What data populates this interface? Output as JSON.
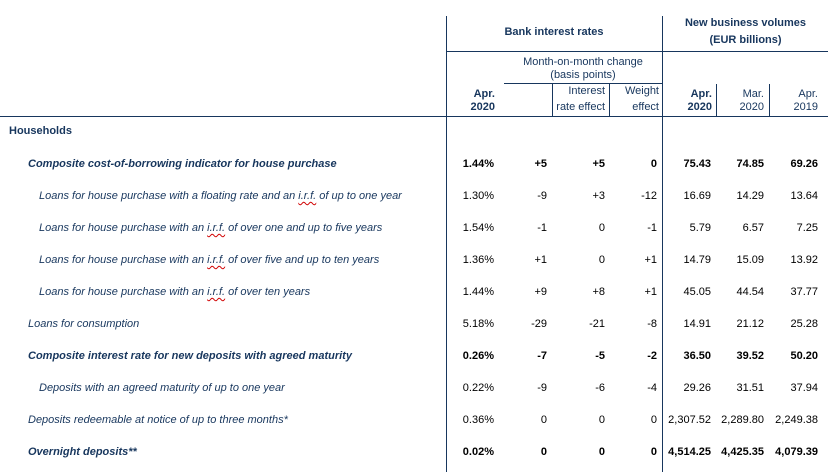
{
  "header": {
    "bank_rates": "Bank interest rates",
    "volumes_line1": "New business volumes",
    "volumes_line2": "(EUR billions)",
    "mom_line1": "Month-on-month change",
    "mom_line2": "(basis points)",
    "interest_line1": "Interest",
    "interest_line2": "rate effect",
    "weight_line1": "Weight",
    "weight_line2": "effect",
    "col_rate": [
      "Apr.",
      "2020"
    ],
    "col_vol_apr20": [
      "Apr.",
      "2020"
    ],
    "col_vol_mar20": [
      "Mar.",
      "2020"
    ],
    "col_vol_apr19": [
      "Apr.",
      "2019"
    ]
  },
  "section": "Households",
  "rows": [
    {
      "pre": "Composite cost-of-borrowing indicator for house purchase",
      "irf": "",
      "post": "",
      "bold": true,
      "indent": 1,
      "rate": "1.44%",
      "mom": "+5",
      "ir": "+5",
      "w": "0",
      "v1": "75.43",
      "v2": "74.85",
      "v3": "69.26"
    },
    {
      "pre": "Loans for house purchase with a floating rate and an ",
      "irf": "i.r.f.",
      "post": " of up to one year",
      "bold": false,
      "indent": 2,
      "rate": "1.30%",
      "mom": "-9",
      "ir": "+3",
      "w": "-12",
      "v1": "16.69",
      "v2": "14.29",
      "v3": "13.64"
    },
    {
      "pre": "Loans for house purchase with an ",
      "irf": "i.r.f.",
      "post": " of over one and up to five years",
      "bold": false,
      "indent": 2,
      "rate": "1.54%",
      "mom": "-1",
      "ir": "0",
      "w": "-1",
      "v1": "5.79",
      "v2": "6.57",
      "v3": "7.25"
    },
    {
      "pre": "Loans for house purchase with an ",
      "irf": "i.r.f.",
      "post": " of over five and up to ten years",
      "bold": false,
      "indent": 2,
      "rate": "1.36%",
      "mom": "+1",
      "ir": "0",
      "w": "+1",
      "v1": "14.79",
      "v2": "15.09",
      "v3": "13.92"
    },
    {
      "pre": "Loans for house purchase with an ",
      "irf": "i.r.f.",
      "post": " of over ten years",
      "bold": false,
      "indent": 2,
      "rate": "1.44%",
      "mom": "+9",
      "ir": "+8",
      "w": "+1",
      "v1": "45.05",
      "v2": "44.54",
      "v3": "37.77"
    },
    {
      "pre": "Loans for consumption",
      "irf": "",
      "post": "",
      "bold": false,
      "indent": 1,
      "rate": "5.18%",
      "mom": "-29",
      "ir": "-21",
      "w": "-8",
      "v1": "14.91",
      "v2": "21.12",
      "v3": "25.28"
    },
    {
      "pre": "Composite interest rate for new deposits with agreed maturity",
      "irf": "",
      "post": "",
      "bold": true,
      "indent": 1,
      "rate": "0.26%",
      "mom": "-7",
      "ir": "-5",
      "w": "-2",
      "v1": "36.50",
      "v2": "39.52",
      "v3": "50.20"
    },
    {
      "pre": "Deposits with an agreed maturity of up to one year",
      "irf": "",
      "post": "",
      "bold": false,
      "indent": 2,
      "rate": "0.22%",
      "mom": "-9",
      "ir": "-6",
      "w": "-4",
      "v1": "29.26",
      "v2": "31.51",
      "v3": "37.94"
    },
    {
      "pre": "Deposits redeemable at notice of up to three months*",
      "irf": "",
      "post": "",
      "bold": false,
      "indent": 1,
      "rate": "0.36%",
      "mom": "0",
      "ir": "0",
      "w": "0",
      "v1": "2,307.52",
      "v2": "2,289.80",
      "v3": "2,249.38"
    },
    {
      "pre": "Overnight deposits**",
      "irf": "",
      "post": "",
      "bold": true,
      "indent": 1,
      "rate": "0.02%",
      "mom": "0",
      "ir": "0",
      "w": "0",
      "v1": "4,514.25",
      "v2": "4,425.35",
      "v3": "4,079.39"
    }
  ]
}
